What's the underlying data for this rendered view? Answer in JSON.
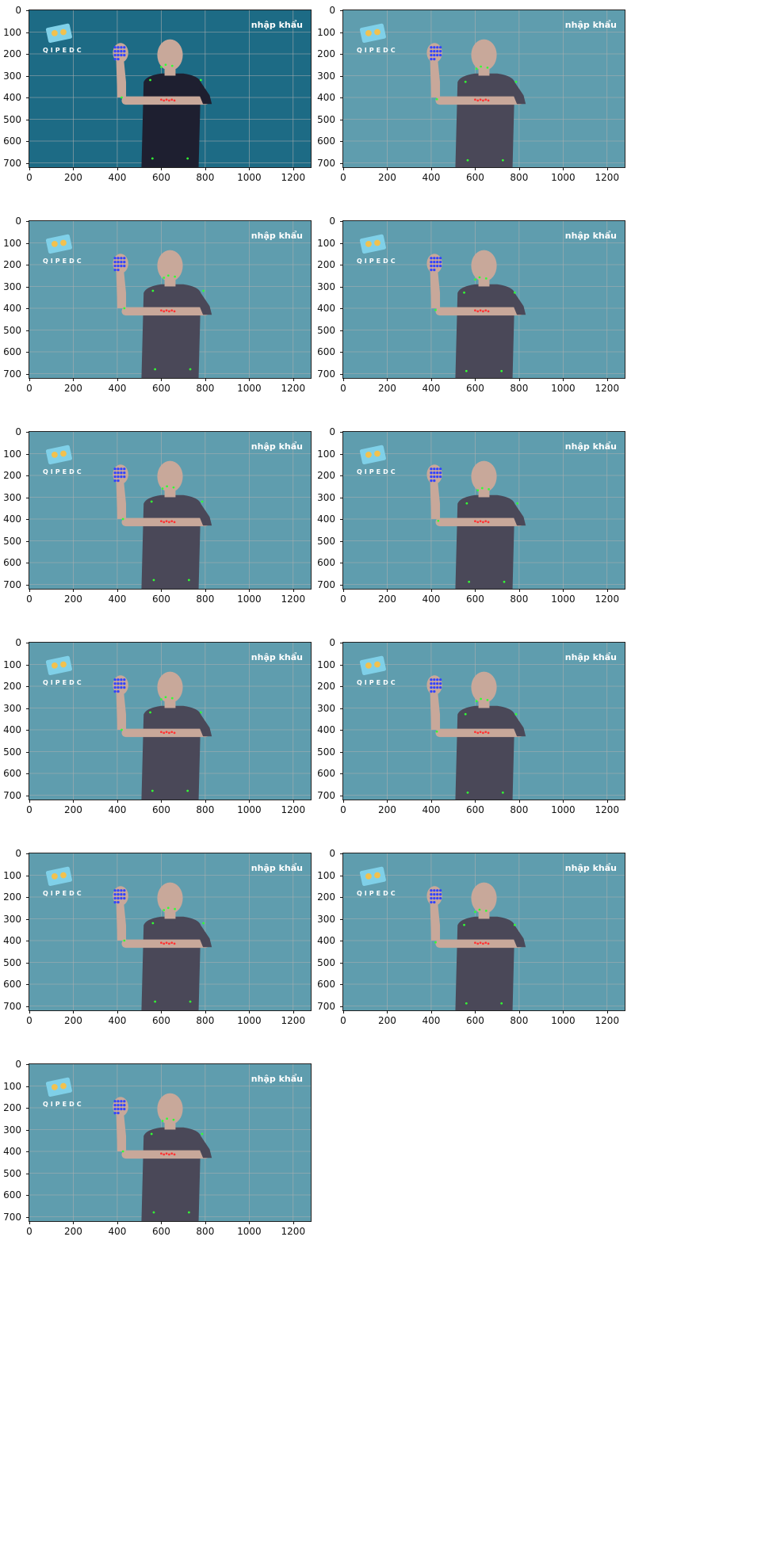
{
  "figure": {
    "rows": 6,
    "cols": 2,
    "x_ticks": [
      "0",
      "200",
      "400",
      "600",
      "800",
      "1000",
      "1200"
    ],
    "y_ticks": [
      "0",
      "100",
      "200",
      "300",
      "400",
      "500",
      "600",
      "700"
    ],
    "x_range": [
      0,
      1280
    ],
    "y_range": [
      720,
      0
    ],
    "grid": true
  },
  "frame_caption": "nhập khẩu",
  "logo_text": "QIPEDC",
  "colors": {
    "first_frame_bg": "#1d6b85",
    "frame_bg": "#5f9dae",
    "shirt": "#4a4858",
    "shirt_first": "#1e1f30",
    "skin": "#c8a89a",
    "pose_points": "#33ff33",
    "hand_left": "#3344ff",
    "hand_right": "#ff3333"
  },
  "panels": [
    {
      "id": 1
    },
    {
      "id": 2
    },
    {
      "id": 3
    },
    {
      "id": 4
    },
    {
      "id": 5
    },
    {
      "id": 6
    },
    {
      "id": 7
    },
    {
      "id": 8
    },
    {
      "id": 9
    },
    {
      "id": 10
    },
    {
      "id": 11
    }
  ]
}
